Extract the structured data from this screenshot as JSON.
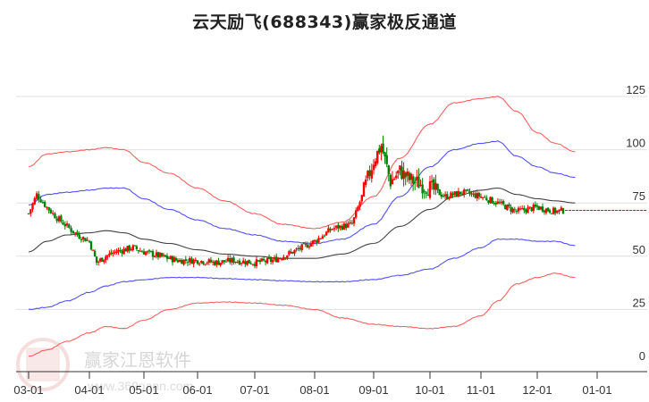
{
  "title": "云天励飞(688343)赢家极反通道",
  "watermark": {
    "brand": "赢家江恩软件",
    "url": "www.360gann.com",
    "seal": [
      "江",
      "赢",
      "恩",
      "家"
    ]
  },
  "colors": {
    "up": "#ff0000",
    "down": "#008000",
    "outer_band": "#ff4444",
    "inner_band": "#3333ff",
    "mid_line": "#222222",
    "last_price_line": "#008000",
    "grid": "#e0e0e0"
  },
  "chart_data": {
    "type": "candlestick",
    "title": "云天励飞(688343)赢家极反通道",
    "xlabel": "",
    "ylabel": "",
    "ylim": [
      0,
      125
    ],
    "y_ticks": [
      0,
      25,
      50,
      75,
      100,
      125
    ],
    "x_ticks": [
      "03-01",
      "04-01",
      "05-01",
      "06-01",
      "07-01",
      "08-01",
      "09-01",
      "10-01",
      "11-01",
      "12-01",
      "01-01"
    ],
    "grid": true,
    "legend": "none",
    "last_price": 71.5,
    "series": [
      {
        "name": "outer_upper",
        "color": "red",
        "x": [
          "03-01",
          "03-10",
          "03-20",
          "04-01",
          "04-10",
          "04-20",
          "05-01",
          "05-15",
          "06-01",
          "06-15",
          "07-01",
          "07-15",
          "08-01",
          "08-15",
          "09-01",
          "09-15",
          "10-01",
          "10-15",
          "11-01",
          "11-10",
          "11-20",
          "12-01",
          "12-10",
          "12-20"
        ],
        "values": [
          92,
          98,
          99,
          100,
          101,
          100,
          94,
          89,
          82,
          76,
          70,
          65,
          63,
          66,
          78,
          96,
          112,
          122,
          124,
          125,
          118,
          108,
          103,
          99
        ]
      },
      {
        "name": "inner_upper",
        "color": "blue",
        "x": [
          "03-01",
          "03-10",
          "03-20",
          "04-01",
          "04-10",
          "04-20",
          "05-01",
          "05-15",
          "06-01",
          "06-15",
          "07-01",
          "07-15",
          "08-01",
          "08-15",
          "09-01",
          "09-15",
          "10-01",
          "10-15",
          "11-01",
          "11-10",
          "11-20",
          "12-01",
          "12-10",
          "12-20"
        ],
        "values": [
          74,
          79,
          80,
          81,
          82,
          82,
          77,
          72,
          67,
          63,
          60,
          57,
          56,
          58,
          65,
          78,
          92,
          100,
          103,
          104,
          97,
          92,
          89,
          87
        ]
      },
      {
        "name": "middle",
        "color": "black",
        "x": [
          "03-01",
          "03-10",
          "03-20",
          "04-01",
          "04-10",
          "04-20",
          "05-01",
          "05-15",
          "06-01",
          "06-15",
          "07-01",
          "07-15",
          "08-01",
          "08-15",
          "09-01",
          "09-15",
          "10-01",
          "10-15",
          "11-01",
          "11-10",
          "11-20",
          "12-01",
          "12-10",
          "12-20"
        ],
        "values": [
          52,
          57,
          60,
          61,
          62,
          61,
          58,
          56,
          53,
          51,
          50,
          49,
          49,
          51,
          56,
          64,
          72,
          78,
          81,
          82,
          79,
          77,
          76,
          75
        ]
      },
      {
        "name": "inner_lower",
        "color": "blue",
        "x": [
          "03-01",
          "03-10",
          "03-20",
          "04-01",
          "04-10",
          "04-20",
          "05-01",
          "05-15",
          "06-01",
          "06-15",
          "07-01",
          "07-15",
          "08-01",
          "08-15",
          "09-01",
          "09-15",
          "10-01",
          "10-15",
          "11-01",
          "11-10",
          "11-20",
          "12-01",
          "12-10",
          "12-20"
        ],
        "values": [
          25,
          26,
          29,
          33,
          36,
          38,
          39,
          40,
          40,
          39.5,
          39,
          38.5,
          38,
          38,
          39,
          41,
          44,
          49,
          54,
          58,
          58,
          57,
          57,
          55
        ]
      },
      {
        "name": "outer_lower",
        "color": "red",
        "x": [
          "03-01",
          "03-10",
          "03-20",
          "04-01",
          "04-10",
          "04-20",
          "05-01",
          "05-15",
          "06-01",
          "06-15",
          "07-01",
          "07-15",
          "08-01",
          "08-15",
          "09-01",
          "09-15",
          "10-01",
          "10-15",
          "11-01",
          "11-10",
          "11-20",
          "12-01",
          "12-10",
          "12-20"
        ],
        "values": [
          3,
          6,
          10,
          14,
          17,
          16,
          20,
          25,
          28,
          28.5,
          28,
          27,
          25,
          21,
          18,
          17,
          16,
          17,
          22,
          29,
          37,
          40,
          42,
          40
        ]
      }
    ],
    "candles_close_approx": {
      "x": [
        "03-01",
        "03-05",
        "03-10",
        "03-15",
        "03-20",
        "03-25",
        "04-01",
        "04-05",
        "04-10",
        "04-15",
        "04-20",
        "04-25",
        "05-01",
        "05-10",
        "05-20",
        "06-01",
        "06-10",
        "06-20",
        "07-01",
        "07-10",
        "07-20",
        "08-01",
        "08-10",
        "08-20",
        "08-25",
        "09-01",
        "09-05",
        "09-10",
        "09-15",
        "09-20",
        "10-01",
        "10-10",
        "10-20",
        "11-01",
        "11-10",
        "11-20",
        "12-01",
        "12-10",
        "12-15"
      ],
      "close": [
        70,
        79,
        73,
        68,
        64,
        60,
        57,
        47,
        50,
        52,
        53,
        54,
        52,
        50,
        48,
        48,
        47,
        48,
        47,
        48,
        52,
        57,
        63,
        65,
        78,
        95,
        102,
        85,
        90,
        86,
        82,
        78,
        80,
        78,
        75,
        71,
        73,
        71,
        71.5
      ]
    }
  }
}
